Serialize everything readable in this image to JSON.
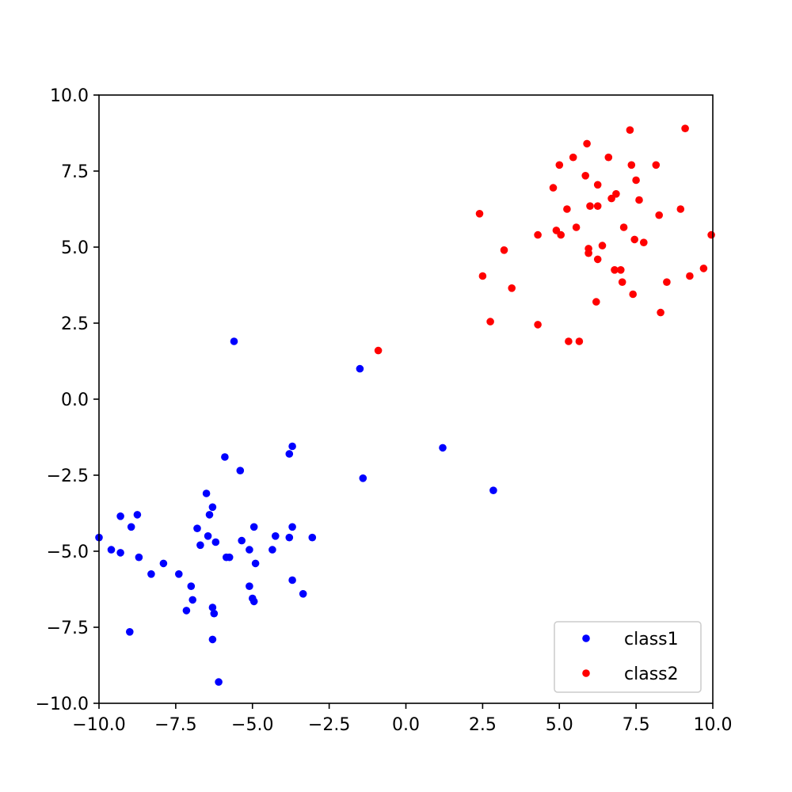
{
  "chart_data": {
    "type": "scatter",
    "title": "",
    "xlabel": "",
    "ylabel": "",
    "xlim": [
      -10,
      10
    ],
    "ylim": [
      -10,
      10
    ],
    "xticks": [
      "−10.0",
      "−7.5",
      "−5.0",
      "−2.5",
      "0.0",
      "2.5",
      "5.0",
      "7.5",
      "10.0"
    ],
    "yticks": [
      "−10.0",
      "−7.5",
      "−5.0",
      "−2.5",
      "0.0",
      "2.5",
      "5.0",
      "7.5",
      "10.0"
    ],
    "xtick_values": [
      -10,
      -7.5,
      -5,
      -2.5,
      0,
      2.5,
      5,
      7.5,
      10
    ],
    "ytick_values": [
      -10,
      -7.5,
      -5,
      -2.5,
      0,
      2.5,
      5,
      7.5,
      10
    ],
    "grid": false,
    "legend_position": "lower right",
    "series": [
      {
        "name": "class1",
        "color": "#0000ff",
        "points": [
          [
            -5.6,
            1.9
          ],
          [
            -1.5,
            1.0
          ],
          [
            -1.4,
            -2.6
          ],
          [
            1.2,
            -1.6
          ],
          [
            2.85,
            -3.0
          ],
          [
            -3.7,
            -1.55
          ],
          [
            -3.8,
            -1.8
          ],
          [
            -5.9,
            -1.9
          ],
          [
            -5.4,
            -2.35
          ],
          [
            -6.5,
            -3.1
          ],
          [
            -6.3,
            -3.55
          ],
          [
            -6.4,
            -3.8
          ],
          [
            -9.3,
            -3.85
          ],
          [
            -8.75,
            -3.8
          ],
          [
            -8.95,
            -4.2
          ],
          [
            -6.8,
            -4.25
          ],
          [
            -6.45,
            -4.5
          ],
          [
            -6.7,
            -4.8
          ],
          [
            -6.2,
            -4.7
          ],
          [
            -5.35,
            -4.65
          ],
          [
            -4.95,
            -4.2
          ],
          [
            -4.25,
            -4.5
          ],
          [
            -3.7,
            -4.2
          ],
          [
            -3.8,
            -4.55
          ],
          [
            -3.05,
            -4.55
          ],
          [
            -4.35,
            -4.95
          ],
          [
            -5.1,
            -4.95
          ],
          [
            -10.0,
            -4.55
          ],
          [
            -9.6,
            -4.95
          ],
          [
            -9.3,
            -5.05
          ],
          [
            -8.7,
            -5.2
          ],
          [
            -7.9,
            -5.4
          ],
          [
            -8.3,
            -5.75
          ],
          [
            -7.4,
            -5.75
          ],
          [
            -5.85,
            -5.2
          ],
          [
            -5.75,
            -5.2
          ],
          [
            -4.9,
            -5.4
          ],
          [
            -3.7,
            -5.95
          ],
          [
            -7.0,
            -6.15
          ],
          [
            -5.1,
            -6.15
          ],
          [
            -6.95,
            -6.6
          ],
          [
            -5.0,
            -6.55
          ],
          [
            -4.95,
            -6.65
          ],
          [
            -3.35,
            -6.4
          ],
          [
            -7.15,
            -6.95
          ],
          [
            -6.3,
            -6.85
          ],
          [
            -6.25,
            -7.05
          ],
          [
            -9.0,
            -7.65
          ],
          [
            -6.3,
            -7.9
          ],
          [
            -6.1,
            -9.3
          ]
        ]
      },
      {
        "name": "class2",
        "color": "#ff0000",
        "points": [
          [
            9.1,
            8.9
          ],
          [
            7.3,
            8.85
          ],
          [
            5.9,
            8.4
          ],
          [
            5.45,
            7.95
          ],
          [
            6.6,
            7.95
          ],
          [
            5.0,
            7.7
          ],
          [
            7.35,
            7.7
          ],
          [
            8.15,
            7.7
          ],
          [
            5.85,
            7.35
          ],
          [
            7.5,
            7.2
          ],
          [
            6.25,
            7.05
          ],
          [
            4.8,
            6.95
          ],
          [
            6.85,
            6.75
          ],
          [
            6.7,
            6.6
          ],
          [
            7.6,
            6.55
          ],
          [
            6.0,
            6.35
          ],
          [
            6.25,
            6.35
          ],
          [
            5.25,
            6.25
          ],
          [
            8.95,
            6.25
          ],
          [
            2.4,
            6.1
          ],
          [
            8.25,
            6.05
          ],
          [
            5.55,
            5.65
          ],
          [
            7.1,
            5.65
          ],
          [
            4.9,
            5.55
          ],
          [
            4.3,
            5.4
          ],
          [
            5.05,
            5.4
          ],
          [
            9.95,
            5.4
          ],
          [
            7.45,
            5.25
          ],
          [
            7.75,
            5.15
          ],
          [
            6.4,
            5.05
          ],
          [
            5.95,
            4.95
          ],
          [
            3.2,
            4.9
          ],
          [
            5.95,
            4.8
          ],
          [
            6.25,
            4.6
          ],
          [
            6.8,
            4.25
          ],
          [
            7.0,
            4.25
          ],
          [
            9.7,
            4.3
          ],
          [
            2.5,
            4.05
          ],
          [
            9.25,
            4.05
          ],
          [
            7.05,
            3.85
          ],
          [
            8.5,
            3.85
          ],
          [
            3.45,
            3.65
          ],
          [
            7.4,
            3.45
          ],
          [
            6.2,
            3.2
          ],
          [
            8.3,
            2.85
          ],
          [
            2.75,
            2.55
          ],
          [
            4.3,
            2.45
          ],
          [
            5.3,
            1.9
          ],
          [
            5.65,
            1.9
          ],
          [
            -0.9,
            1.6
          ]
        ]
      }
    ]
  }
}
